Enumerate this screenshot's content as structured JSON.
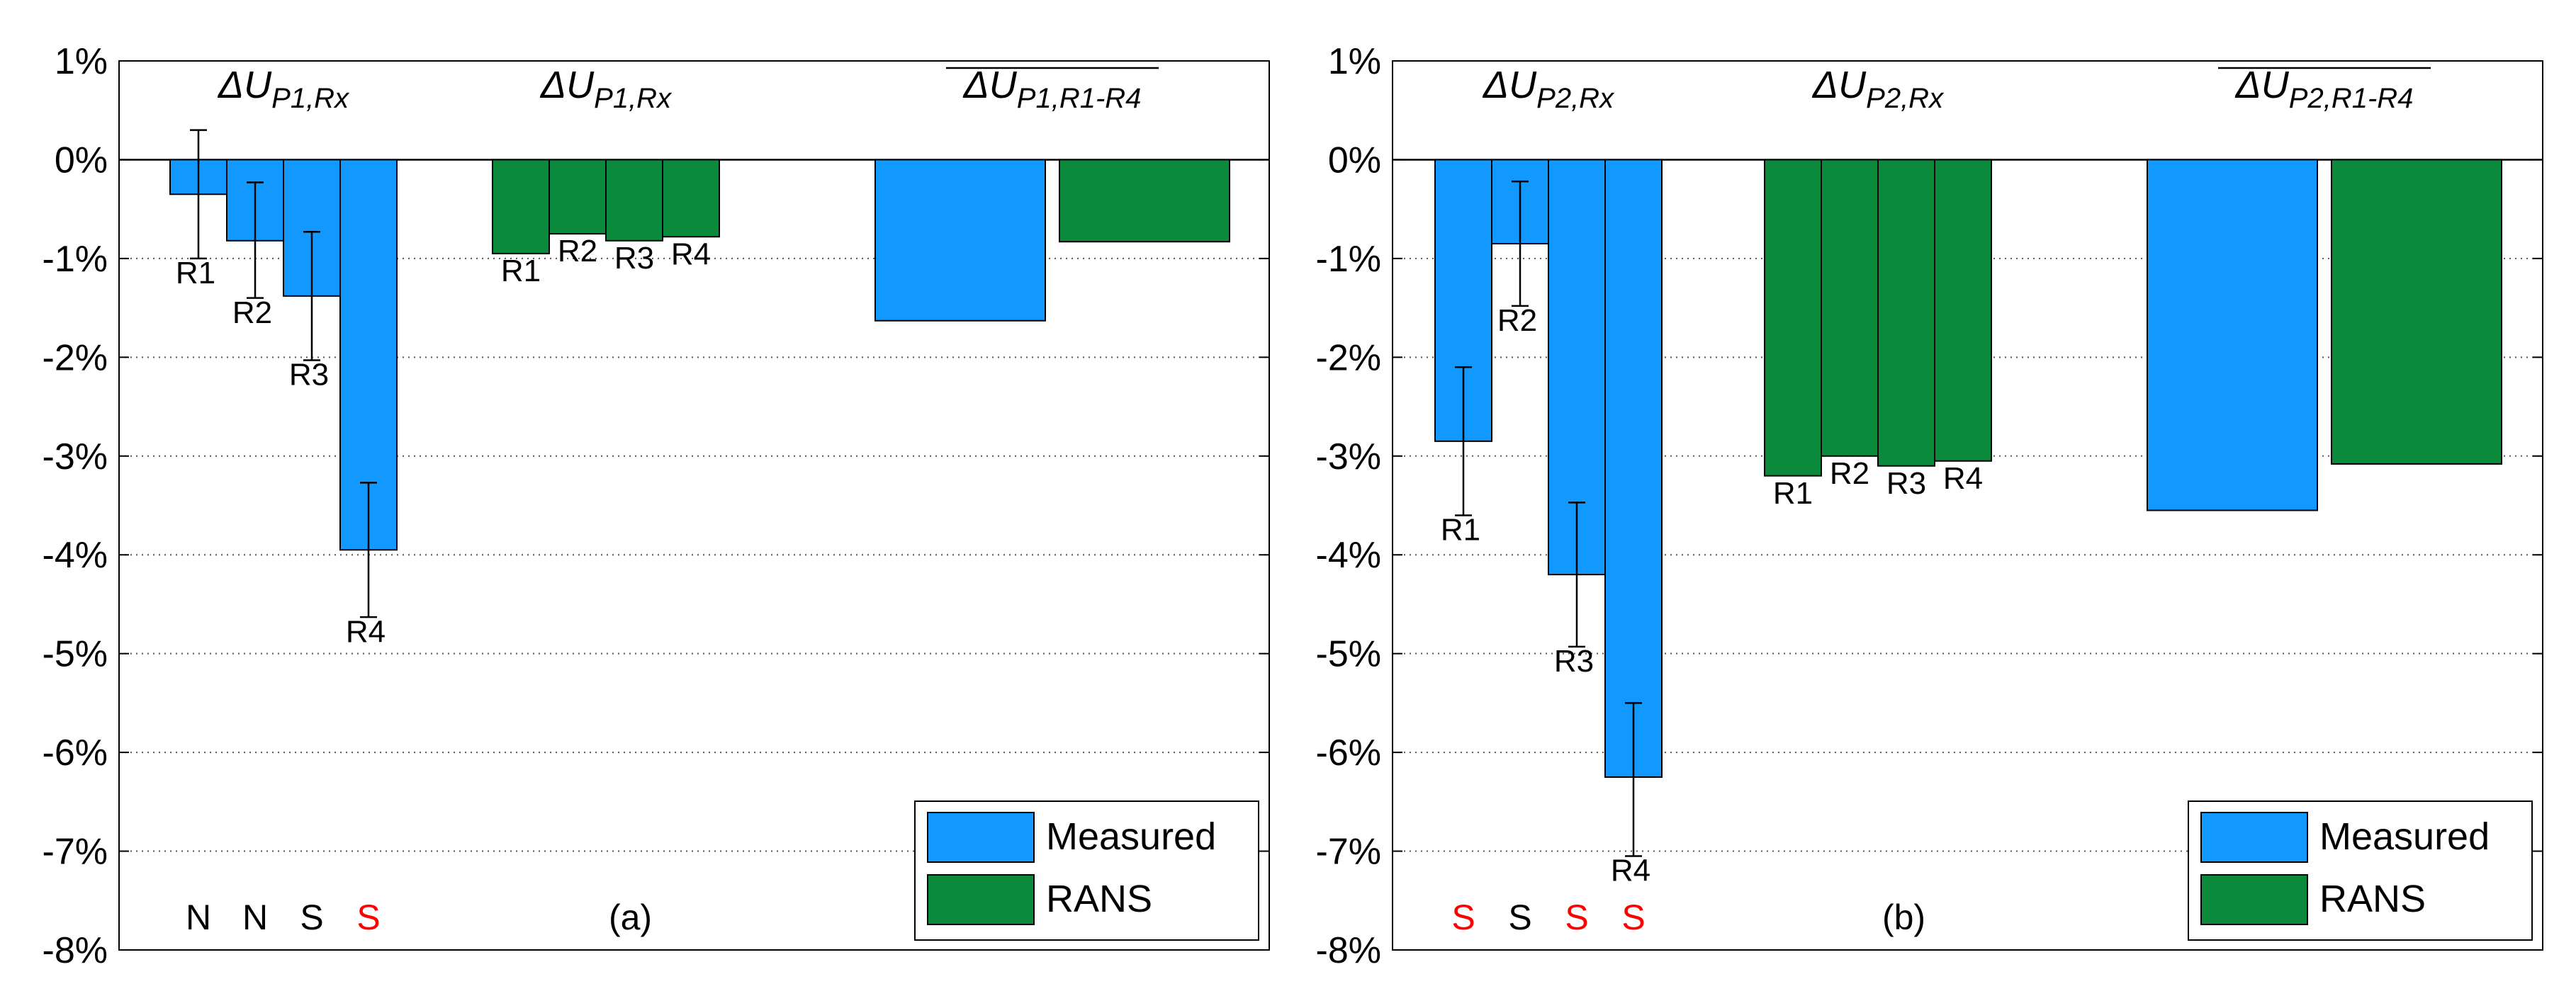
{
  "colors": {
    "measured": "#1199ff",
    "rans": "#0a8a3a",
    "special": "#ff0000",
    "axis": "#000000",
    "grid": "#555555"
  },
  "chart_data": [
    {
      "type": "bar",
      "panel_label": "(a)",
      "ylim": [
        -8,
        1
      ],
      "yticks": [
        "1%",
        "0%",
        "-1%",
        "-2%",
        "-3%",
        "-4%",
        "-5%",
        "-6%",
        "-7%",
        "-8%"
      ],
      "grid": "dotted horizontal",
      "legend_position": "bottom-right",
      "groups": [
        {
          "title_symbol": "ΔU",
          "title_sub": "P1,Rx",
          "overline": false
        },
        {
          "title_symbol": "ΔU",
          "title_sub": "P1,Rx",
          "overline": false
        },
        {
          "title_symbol": "ΔU",
          "title_sub": "P1,R1-R4",
          "overline": true
        }
      ],
      "series": [
        {
          "name": "Measured",
          "categories": [
            "R1",
            "R2",
            "R3",
            "R4"
          ],
          "values": [
            -0.35,
            -0.82,
            -1.38,
            -3.95
          ],
          "err_low": [
            -1.0,
            -1.4,
            -2.03,
            -4.63
          ],
          "err_high": [
            0.3,
            -0.23,
            -0.73,
            -3.27
          ]
        },
        {
          "name": "RANS",
          "categories": [
            "R1",
            "R2",
            "R3",
            "R4"
          ],
          "values": [
            -0.95,
            -0.75,
            -0.82,
            -0.78
          ]
        }
      ],
      "averages": {
        "Measured": -1.63,
        "RANS": -0.83
      },
      "markers": [
        {
          "text": "N",
          "color": "black"
        },
        {
          "text": "N",
          "color": "black"
        },
        {
          "text": "S",
          "color": "black"
        },
        {
          "text": "S",
          "color": "red"
        }
      ]
    },
    {
      "type": "bar",
      "panel_label": "(b)",
      "ylim": [
        -8,
        1
      ],
      "yticks": [
        "1%",
        "0%",
        "-1%",
        "-2%",
        "-3%",
        "-4%",
        "-5%",
        "-6%",
        "-7%",
        "-8%"
      ],
      "grid": "dotted horizontal",
      "legend_position": "bottom-right",
      "groups": [
        {
          "title_symbol": "ΔU",
          "title_sub": "P2,Rx",
          "overline": false
        },
        {
          "title_symbol": "ΔU",
          "title_sub": "P2,Rx",
          "overline": false
        },
        {
          "title_symbol": "ΔU",
          "title_sub": "P2,R1-R4",
          "overline": true
        }
      ],
      "series": [
        {
          "name": "Measured",
          "categories": [
            "R1",
            "R2",
            "R3",
            "R4"
          ],
          "values": [
            -2.85,
            -0.85,
            -4.2,
            -6.25
          ],
          "err_low": [
            -3.6,
            -1.48,
            -4.93,
            -7.05
          ],
          "err_high": [
            -2.1,
            -0.22,
            -3.47,
            -5.5
          ]
        },
        {
          "name": "RANS",
          "categories": [
            "R1",
            "R2",
            "R3",
            "R4"
          ],
          "values": [
            -3.2,
            -3.0,
            -3.1,
            -3.05
          ]
        }
      ],
      "averages": {
        "Measured": -3.55,
        "RANS": -3.08
      },
      "markers": [
        {
          "text": "S",
          "color": "red"
        },
        {
          "text": "S",
          "color": "black"
        },
        {
          "text": "S",
          "color": "red"
        },
        {
          "text": "S",
          "color": "red"
        }
      ]
    }
  ]
}
